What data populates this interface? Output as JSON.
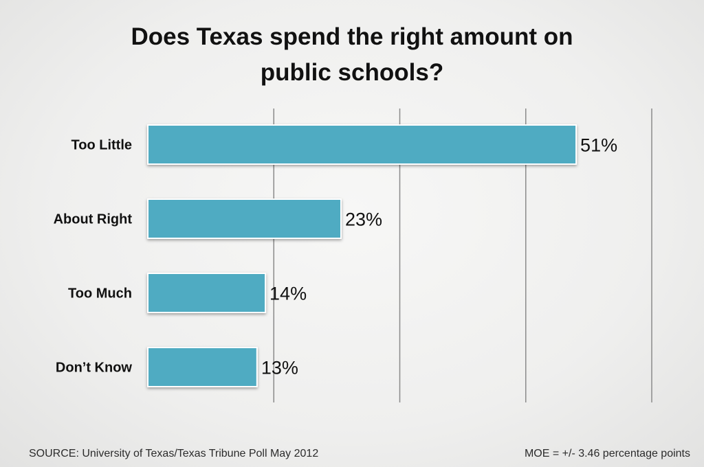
{
  "chart_data": {
    "type": "bar",
    "orientation": "horizontal",
    "title_lines": [
      "Does Texas spend the right amount on",
      "public schools?"
    ],
    "categories": [
      "Too Little",
      "About Right",
      "Too Much",
      "Don’t Know"
    ],
    "values": [
      51,
      23,
      14,
      13
    ],
    "value_labels": [
      "51%",
      "23%",
      "14%",
      "13%"
    ],
    "xlim": [
      0,
      60
    ],
    "grid": true,
    "bar_color": "#4fabc2"
  },
  "footer": {
    "source": "SOURCE: University of Texas/Texas Tribune Poll May 2012",
    "moe": "MOE = +/- 3.46 percentage points"
  }
}
